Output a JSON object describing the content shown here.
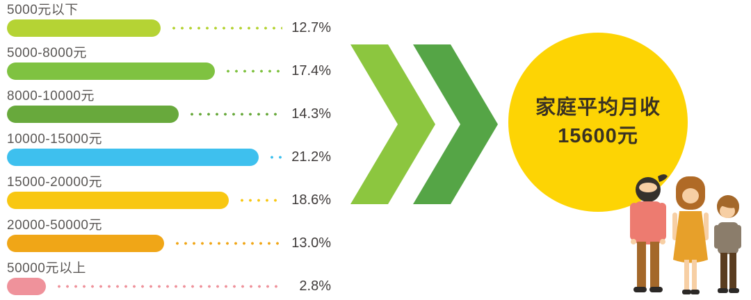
{
  "chart_data": {
    "type": "bar",
    "orientation": "horizontal",
    "title": "",
    "xlabel": "",
    "ylabel": "",
    "unit": "%",
    "xlim": [
      0,
      25
    ],
    "grid": false,
    "categories": [
      "5000元以下",
      "5000-8000元",
      "8000-10000元",
      "10000-15000元",
      "15000-20000元",
      "20000-50000元",
      "50000元以上"
    ],
    "values": [
      12.7,
      17.4,
      14.3,
      21.2,
      18.6,
      13.0,
      2.8
    ],
    "value_labels": [
      "12.7%",
      "17.4%",
      "14.3%",
      "21.2%",
      "18.6%",
      "13.0%",
      "2.8%"
    ],
    "bar_colors": [
      "#b5d334",
      "#7fc241",
      "#68a93c",
      "#3ec0ee",
      "#f8c712",
      "#f0a617",
      "#ef929b"
    ],
    "label_color": "#5a5755",
    "value_color": "#3f3b3a"
  },
  "summary": {
    "circle_text_line1": "家庭平均月收",
    "circle_text_line2": "15600元",
    "circle_color": "#fdd404",
    "circle_text_color": "#3a3222",
    "arrow_colors": [
      "#8cc63f",
      "#55a546"
    ]
  },
  "illustration": {
    "name": "family-of-three",
    "skin": "#f7cfa4",
    "man_hair": "#35312c",
    "man_shirt": "#ed7b70",
    "man_pants": "#a4682a",
    "woman_hair": "#b06a26",
    "woman_dress": "#e7a02a",
    "boy_hair": "#a4682a",
    "boy_sweater": "#8b7d6b",
    "boy_pants": "#5a3d20",
    "shoes": "#2b2826"
  }
}
